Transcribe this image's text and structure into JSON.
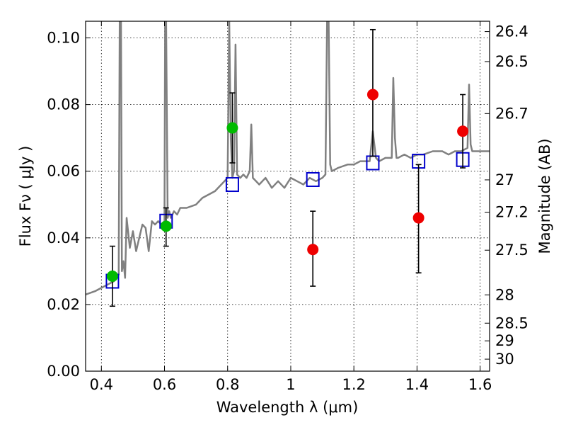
{
  "chart_data": {
    "type": "scatter",
    "title": "",
    "xlabel": "Wavelength  λ (μm)",
    "ylabel": "Flux  Fν  ( μJy )",
    "y2label": "Magnitude (AB)",
    "xlim": [
      0.35,
      1.63
    ],
    "ylim": [
      0.0,
      0.105
    ],
    "grid": true,
    "x_ticks": [
      0.4,
      0.6,
      0.8,
      1.0,
      1.2,
      1.4,
      1.6
    ],
    "x_tick_labels": [
      "0.4",
      "0.6",
      "0.8",
      "1",
      "1.2",
      "1.4",
      "1.6"
    ],
    "y_ticks": [
      0.0,
      0.02,
      0.04,
      0.06,
      0.08,
      0.1
    ],
    "y_tick_labels": [
      "0.00",
      "0.02",
      "0.04",
      "0.06",
      "0.08",
      "0.10"
    ],
    "y2_ticks": [
      {
        "label": "26.4",
        "flux": 0.1019
      },
      {
        "label": "26.5",
        "flux": 0.0929
      },
      {
        "label": "26.7",
        "flux": 0.0773
      },
      {
        "label": "27",
        "flux": 0.0574
      },
      {
        "label": "27.2",
        "flux": 0.0477
      },
      {
        "label": "27.5",
        "flux": 0.0363
      },
      {
        "label": "28",
        "flux": 0.0229
      },
      {
        "label": "28.5",
        "flux": 0.0144
      },
      {
        "label": "29",
        "flux": 0.0091
      },
      {
        "label": "30",
        "flux": 0.0036
      }
    ],
    "colors": {
      "spectrum": "#808080",
      "model_points": "#0000cc",
      "green_points": "#00bb00",
      "red_points": "#ee0000",
      "error_bars": "#000000"
    },
    "series": [
      {
        "kind": "line",
        "x": [
          0.35,
          0.38,
          0.4,
          0.42,
          0.44,
          0.455,
          0.458,
          0.462,
          0.465,
          0.47,
          0.475,
          0.48,
          0.49,
          0.5,
          0.51,
          0.52,
          0.53,
          0.54,
          0.55,
          0.56,
          0.57,
          0.58,
          0.59,
          0.6,
          0.602,
          0.605,
          0.61,
          0.615,
          0.62,
          0.625,
          0.63,
          0.64,
          0.65,
          0.67,
          0.7,
          0.72,
          0.74,
          0.76,
          0.78,
          0.8,
          0.805,
          0.81,
          0.815,
          0.82,
          0.825,
          0.83,
          0.84,
          0.85,
          0.86,
          0.87,
          0.875,
          0.88,
          0.89,
          0.9,
          0.92,
          0.94,
          0.96,
          0.98,
          1.0,
          1.02,
          1.04,
          1.06,
          1.08,
          1.1,
          1.11,
          1.115,
          1.12,
          1.125,
          1.13,
          1.15,
          1.18,
          1.2,
          1.22,
          1.25,
          1.26,
          1.27,
          1.28,
          1.3,
          1.32,
          1.325,
          1.33,
          1.335,
          1.34,
          1.36,
          1.38,
          1.4,
          1.42,
          1.45,
          1.48,
          1.5,
          1.52,
          1.54,
          1.56,
          1.565,
          1.57,
          1.575,
          1.58,
          1.6,
          1.63
        ],
        "y": [
          0.023,
          0.024,
          0.025,
          0.026,
          0.027,
          0.029,
          0.105,
          0.105,
          0.03,
          0.033,
          0.028,
          0.046,
          0.037,
          0.042,
          0.036,
          0.04,
          0.044,
          0.043,
          0.036,
          0.045,
          0.044,
          0.045,
          0.044,
          0.045,
          0.105,
          0.105,
          0.046,
          0.048,
          0.046,
          0.047,
          0.048,
          0.047,
          0.049,
          0.049,
          0.05,
          0.052,
          0.053,
          0.054,
          0.056,
          0.058,
          0.105,
          0.07,
          0.058,
          0.06,
          0.098,
          0.059,
          0.058,
          0.059,
          0.058,
          0.06,
          0.074,
          0.058,
          0.057,
          0.056,
          0.058,
          0.055,
          0.057,
          0.055,
          0.058,
          0.057,
          0.056,
          0.058,
          0.057,
          0.058,
          0.059,
          0.105,
          0.105,
          0.062,
          0.06,
          0.061,
          0.062,
          0.062,
          0.063,
          0.063,
          0.072,
          0.064,
          0.063,
          0.064,
          0.064,
          0.088,
          0.07,
          0.064,
          0.064,
          0.065,
          0.064,
          0.065,
          0.065,
          0.066,
          0.066,
          0.065,
          0.066,
          0.066,
          0.067,
          0.086,
          0.068,
          0.066,
          0.066,
          0.066,
          0.066
        ]
      },
      {
        "kind": "open-square",
        "x": [
          0.435,
          0.605,
          0.815,
          1.07,
          1.26,
          1.405,
          1.545
        ],
        "y": [
          0.027,
          0.045,
          0.056,
          0.0575,
          0.0625,
          0.063,
          0.0635
        ]
      },
      {
        "kind": "filled-circle",
        "color": "green",
        "x": [
          0.435,
          0.605,
          0.815
        ],
        "y": [
          0.0285,
          0.0435,
          0.073
        ],
        "yerr_low": [
          0.0195,
          0.0375,
          0.0625
        ],
        "yerr_high": [
          0.0375,
          0.049,
          0.0835
        ]
      },
      {
        "kind": "filled-circle",
        "color": "red",
        "x": [
          1.07,
          1.26,
          1.405,
          1.545
        ],
        "y": [
          0.0365,
          0.083,
          0.046,
          0.072
        ],
        "yerr_low": [
          0.0255,
          0.0645,
          0.0295,
          0.061
        ],
        "yerr_high": [
          0.048,
          0.1025,
          0.062,
          0.083
        ]
      }
    ]
  }
}
